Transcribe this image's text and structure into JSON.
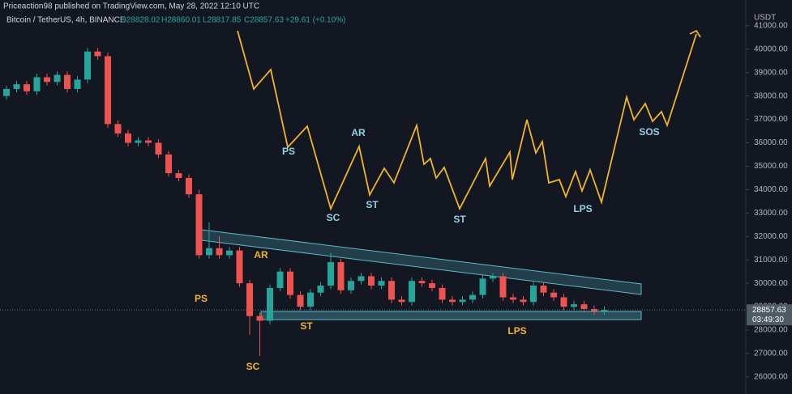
{
  "header": {
    "publisher": "Priceaction98 published on TradingView.com, May 28, 2022 12:10 UTC",
    "symbol": "Bitcoin / TetherUS, 4h, BINANCE",
    "ohlc": [
      "O28828.02",
      "H28860.01",
      "L28817.85",
      "C28857.63"
    ],
    "change": "+29.61 (+0.10%)"
  },
  "chart_data": {
    "type": "candlestick",
    "currency": "USDT",
    "up_color": "#26a69a",
    "down_color": "#ef5350",
    "ylim": [
      25270,
      42100
    ],
    "yticks": [
      {
        "value": 26000,
        "label": "26000.00"
      },
      {
        "value": 27000,
        "label": "27000.00"
      },
      {
        "value": 28000,
        "label": "28000.00"
      },
      {
        "value": 29000,
        "label": "29000.00"
      },
      {
        "value": 30000,
        "label": "30000.00"
      },
      {
        "value": 31000,
        "label": "31000.00"
      },
      {
        "value": 32000,
        "label": "32000.00"
      },
      {
        "value": 33000,
        "label": "33000.00"
      },
      {
        "value": 34000,
        "label": "34000.00"
      },
      {
        "value": 35000,
        "label": "35000.00"
      },
      {
        "value": 36000,
        "label": "36000.00"
      },
      {
        "value": 37000,
        "label": "37000.00"
      },
      {
        "value": 38000,
        "label": "38000.00"
      },
      {
        "value": 39000,
        "label": "39000.00"
      },
      {
        "value": 40000,
        "label": "40000.00"
      },
      {
        "value": 41000,
        "label": "41000.00"
      }
    ],
    "last_price": {
      "value": 28857.63,
      "label": "28857.63",
      "countdown": "03:49:30"
    },
    "open": [
      38000,
      38300,
      38500,
      38200,
      38800,
      38600,
      38900,
      38300,
      38700,
      39900,
      39700,
      36800,
      36400,
      36000,
      36100,
      36000,
      35500,
      34700,
      34500,
      33800,
      31200,
      31500,
      31200,
      31400,
      30000,
      28600,
      28400,
      29800,
      30500,
      29500,
      29000,
      29600,
      29900,
      30900,
      29700,
      30100,
      30300,
      29900,
      30100,
      29300,
      29200,
      30100,
      30000,
      29800,
      29300,
      29200,
      29300,
      29500,
      30200,
      30300,
      29400,
      29300,
      29200,
      29900,
      29600,
      29400,
      29000,
      29100,
      28900,
      28800
    ],
    "high": [
      38450,
      38650,
      38650,
      38950,
      38950,
      39050,
      39050,
      38850,
      40050,
      40050,
      39850,
      36950,
      36550,
      36250,
      36250,
      36150,
      35650,
      34850,
      34650,
      34000,
      32600,
      32000,
      31550,
      31550,
      30150,
      28750,
      29950,
      30650,
      30650,
      29650,
      29750,
      30050,
      31300,
      31050,
      30250,
      30450,
      30450,
      30250,
      30250,
      29450,
      30250,
      30250,
      30150,
      29950,
      29450,
      29450,
      29650,
      30350,
      30450,
      30450,
      29550,
      29450,
      30050,
      30050,
      29750,
      29550,
      29250,
      29250,
      29050,
      29010
    ],
    "low": [
      37850,
      38150,
      38050,
      38050,
      38450,
      38450,
      38150,
      38150,
      38550,
      39550,
      36650,
      36250,
      35850,
      35850,
      35850,
      35350,
      34550,
      34350,
      33650,
      31050,
      31050,
      31050,
      31050,
      29850,
      27800,
      26900,
      28250,
      29650,
      29350,
      28850,
      28850,
      29450,
      29750,
      29550,
      29550,
      29950,
      29750,
      29750,
      29150,
      29050,
      29050,
      29850,
      29650,
      29150,
      29050,
      29050,
      29150,
      29350,
      30050,
      29250,
      29150,
      29050,
      29050,
      29450,
      29250,
      28850,
      28850,
      28750,
      28650,
      28650
    ],
    "close": [
      38300,
      38500,
      38200,
      38800,
      38600,
      38900,
      38300,
      38700,
      39900,
      39700,
      36800,
      36400,
      36000,
      36100,
      36000,
      35500,
      34700,
      34500,
      33800,
      31200,
      31500,
      31200,
      31400,
      30000,
      28600,
      28400,
      29800,
      30500,
      29500,
      29000,
      29600,
      29900,
      30900,
      29700,
      30100,
      30300,
      29900,
      30100,
      29300,
      29200,
      30100,
      30000,
      29800,
      29300,
      29200,
      29300,
      29500,
      30200,
      30300,
      29400,
      29300,
      29200,
      29900,
      29600,
      29400,
      29000,
      29100,
      28900,
      28800,
      28860
    ],
    "annotations": [
      {
        "text": "PS",
        "color": "#f0b429"
      },
      {
        "text": "SC",
        "color": "#f0b429"
      },
      {
        "text": "AR",
        "color": "#f0b429"
      },
      {
        "text": "ST",
        "color": "#f0b429"
      },
      {
        "text": "LPS",
        "color": "#f0b429"
      },
      {
        "text": "PS",
        "color": "#8fd3e8"
      },
      {
        "text": "SC",
        "color": "#8fd3e8"
      },
      {
        "text": "AR",
        "color": "#8fd3e8"
      },
      {
        "text": "ST",
        "color": "#8fd3e8"
      },
      {
        "text": "ST",
        "color": "#8fd3e8"
      },
      {
        "text": "LPS",
        "color": "#8fd3e8"
      },
      {
        "text": "SOS",
        "color": "#8fd3e8"
      }
    ]
  }
}
